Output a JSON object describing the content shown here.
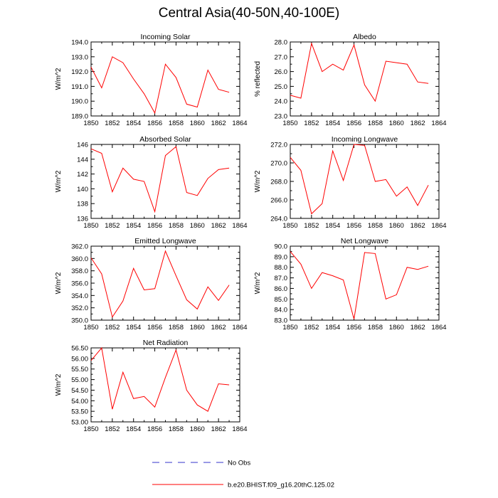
{
  "title": "Central Asia(40-50N,40-100E)",
  "colors": {
    "model": "#ff0000",
    "obs": "#3333cc",
    "axis": "#000000"
  },
  "legend": {
    "obs_label": "No Obs",
    "model_label": "b.e20.BHIST.f09_g16.20thC.125.02"
  },
  "chart_data": [
    {
      "type": "line",
      "title": "Incoming Solar",
      "xlabel": "",
      "ylabel": "W/m^2",
      "xlim": [
        1850,
        1864
      ],
      "ylim": [
        189.0,
        194.0
      ],
      "xticks": [
        "1850",
        "1852",
        "1854",
        "1856",
        "1858",
        "1860",
        "1862",
        "1864"
      ],
      "yticks": [
        "189.0",
        "190.0",
        "191.0",
        "192.0",
        "193.0",
        "194.0"
      ],
      "x": [
        1850,
        1851,
        1852,
        1853,
        1854,
        1855,
        1856,
        1857,
        1858,
        1859,
        1860,
        1861,
        1862,
        1863
      ],
      "series": [
        {
          "name": "b.e20.BHIST.f09_g16.20thC.125.02",
          "values": [
            192.3,
            190.9,
            193.0,
            192.6,
            191.5,
            190.5,
            189.2,
            192.5,
            191.6,
            189.8,
            189.6,
            192.1,
            190.8,
            190.6
          ]
        }
      ]
    },
    {
      "type": "line",
      "title": "Albedo",
      "xlabel": "",
      "ylabel": "% reflected",
      "xlim": [
        1850,
        1864
      ],
      "ylim": [
        23.0,
        28.0
      ],
      "xticks": [
        "1850",
        "1852",
        "1854",
        "1856",
        "1858",
        "1860",
        "1862",
        "1864"
      ],
      "yticks": [
        "23.0",
        "24.0",
        "25.0",
        "26.0",
        "27.0",
        "28.0"
      ],
      "x": [
        1850,
        1851,
        1852,
        1853,
        1854,
        1855,
        1856,
        1857,
        1858,
        1859,
        1860,
        1861,
        1862,
        1863
      ],
      "series": [
        {
          "name": "b.e20.BHIST.f09_g16.20thC.125.02",
          "values": [
            24.4,
            24.2,
            27.9,
            26.0,
            26.5,
            26.1,
            27.8,
            25.1,
            24.0,
            26.7,
            26.6,
            26.5,
            25.3,
            25.2
          ]
        }
      ]
    },
    {
      "type": "line",
      "title": "Absorbed Solar",
      "xlabel": "",
      "ylabel": "W/m^2",
      "xlim": [
        1850,
        1864
      ],
      "ylim": [
        136,
        146
      ],
      "xticks": [
        "1850",
        "1852",
        "1854",
        "1856",
        "1858",
        "1860",
        "1862",
        "1864"
      ],
      "yticks": [
        "136",
        "138",
        "140",
        "142",
        "144",
        "146"
      ],
      "x": [
        1850,
        1851,
        1852,
        1853,
        1854,
        1855,
        1856,
        1857,
        1858,
        1859,
        1860,
        1861,
        1862,
        1863
      ],
      "series": [
        {
          "name": "b.e20.BHIST.f09_g16.20thC.125.02",
          "values": [
            145.4,
            144.8,
            139.6,
            142.8,
            141.3,
            141.0,
            136.9,
            144.5,
            145.7,
            139.5,
            139.1,
            141.4,
            142.6,
            142.8
          ]
        }
      ]
    },
    {
      "type": "line",
      "title": "Incoming Longwave",
      "xlabel": "",
      "ylabel": "W/m^2",
      "xlim": [
        1850,
        1864
      ],
      "ylim": [
        264.0,
        272.0
      ],
      "xticks": [
        "1850",
        "1852",
        "1854",
        "1856",
        "1858",
        "1860",
        "1862",
        "1864"
      ],
      "yticks": [
        "264.0",
        "266.0",
        "268.0",
        "270.0",
        "272.0"
      ],
      "x": [
        1850,
        1851,
        1852,
        1853,
        1854,
        1855,
        1856,
        1857,
        1858,
        1859,
        1860,
        1861,
        1862,
        1863
      ],
      "series": [
        {
          "name": "b.e20.BHIST.f09_g16.20thC.125.02",
          "values": [
            270.6,
            269.2,
            264.5,
            265.6,
            271.3,
            268.1,
            272.0,
            271.9,
            268.0,
            268.2,
            266.4,
            267.4,
            265.4,
            267.6
          ]
        }
      ]
    },
    {
      "type": "line",
      "title": "Emitted Longwave",
      "xlabel": "",
      "ylabel": "W/m^2",
      "xlim": [
        1850,
        1864
      ],
      "ylim": [
        350.0,
        362.0
      ],
      "xticks": [
        "1850",
        "1852",
        "1854",
        "1856",
        "1858",
        "1860",
        "1862",
        "1864"
      ],
      "yticks": [
        "350.0",
        "352.0",
        "354.0",
        "356.0",
        "358.0",
        "360.0",
        "362.0"
      ],
      "x": [
        1850,
        1851,
        1852,
        1853,
        1854,
        1855,
        1856,
        1857,
        1858,
        1859,
        1860,
        1861,
        1862,
        1863
      ],
      "series": [
        {
          "name": "b.e20.BHIST.f09_g16.20thC.125.02",
          "values": [
            360.1,
            357.5,
            350.5,
            353.1,
            358.4,
            354.9,
            355.1,
            361.2,
            357.2,
            353.3,
            351.8,
            355.4,
            353.2,
            355.7
          ]
        }
      ]
    },
    {
      "type": "line",
      "title": "Net Longwave",
      "xlabel": "",
      "ylabel": "W/m^2",
      "xlim": [
        1850,
        1864
      ],
      "ylim": [
        83.0,
        90.0
      ],
      "xticks": [
        "1850",
        "1852",
        "1854",
        "1856",
        "1858",
        "1860",
        "1862",
        "1864"
      ],
      "yticks": [
        "83.0",
        "84.0",
        "85.0",
        "86.0",
        "87.0",
        "88.0",
        "89.0",
        "90.0"
      ],
      "x": [
        1850,
        1851,
        1852,
        1853,
        1854,
        1855,
        1856,
        1857,
        1858,
        1859,
        1860,
        1861,
        1862,
        1863
      ],
      "series": [
        {
          "name": "b.e20.BHIST.f09_g16.20thC.125.02",
          "values": [
            89.5,
            88.3,
            86.0,
            87.5,
            87.2,
            86.8,
            83.1,
            89.4,
            89.3,
            85.0,
            85.4,
            88.0,
            87.8,
            88.1
          ]
        }
      ]
    },
    {
      "type": "line",
      "title": "Net Radiation",
      "xlabel": "",
      "ylabel": "W/m^2",
      "xlim": [
        1850,
        1864
      ],
      "ylim": [
        53.0,
        56.5
      ],
      "xticks": [
        "1850",
        "1852",
        "1854",
        "1856",
        "1858",
        "1860",
        "1862",
        "1864"
      ],
      "yticks": [
        "53.00",
        "53.50",
        "54.00",
        "54.50",
        "55.00",
        "55.50",
        "56.00",
        "56.50"
      ],
      "x": [
        1850,
        1851,
        1852,
        1853,
        1854,
        1855,
        1856,
        1857,
        1858,
        1859,
        1860,
        1861,
        1862,
        1863
      ],
      "series": [
        {
          "name": "b.e20.BHIST.f09_g16.20thC.125.02",
          "values": [
            55.9,
            56.5,
            53.6,
            55.35,
            54.1,
            54.2,
            53.7,
            55.1,
            56.4,
            54.5,
            53.8,
            53.5,
            54.8,
            54.75
          ]
        }
      ]
    }
  ]
}
